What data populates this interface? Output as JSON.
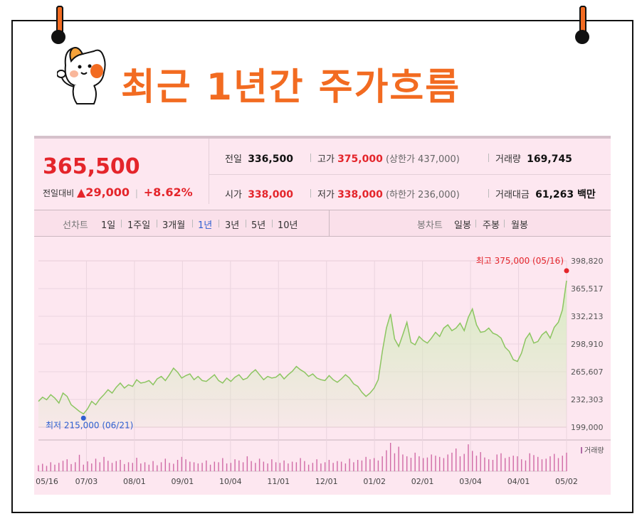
{
  "header": {
    "title": "최근 1년간 주가흐름"
  },
  "quote": {
    "price": "365,500",
    "change_label": "전일대비",
    "change_value": "▲29,000",
    "change_pct": "+8.62%",
    "prev_label": "전일",
    "prev_value": "336,500",
    "high_label": "고가",
    "high_value": "375,000",
    "high_limit": "(상한가 437,000)",
    "volume_label": "거래량",
    "volume_value": "169,745",
    "open_label": "시가",
    "open_value": "338,000",
    "low_label": "저가",
    "low_value": "338,000",
    "low_limit": "(하한가 236,000)",
    "amount_label": "거래대금",
    "amount_value": "61,263 백만"
  },
  "tabs": {
    "chart_label": "선차트",
    "periods": [
      "1일",
      "1주일",
      "3개월",
      "1년",
      "3년",
      "5년",
      "10년"
    ],
    "selected": "1년",
    "candle_label": "봉차트",
    "candle_periods": [
      "일봉",
      "주봉",
      "월봉"
    ]
  },
  "colors": {
    "accent": "#f26b21",
    "up": "#e4252b",
    "line": "#8cc561",
    "fill": "#d6ecc0",
    "low_marker": "#2f5fd1",
    "volume": "#d06aa6"
  },
  "chart_data": {
    "type": "area",
    "x_ticks": [
      "05/16",
      "07/03",
      "08/01",
      "09/01",
      "10/04",
      "11/01",
      "12/01",
      "01/02",
      "02/01",
      "03/04",
      "04/01",
      "05/02"
    ],
    "y_ticks": [
      "398,820",
      "365,517",
      "332,213",
      "298,910",
      "265,607",
      "232,303",
      "199,000"
    ],
    "ylim": [
      199000,
      398820
    ],
    "values": [
      230000,
      235000,
      232000,
      238000,
      234000,
      228000,
      240000,
      236000,
      226000,
      222000,
      218000,
      215000,
      221000,
      230000,
      226000,
      233000,
      238000,
      244000,
      240000,
      247000,
      252000,
      246000,
      250000,
      248000,
      256000,
      252000,
      253000,
      255000,
      250000,
      257000,
      260000,
      255000,
      262000,
      270000,
      265000,
      258000,
      261000,
      263000,
      256000,
      260000,
      255000,
      254000,
      258000,
      262000,
      255000,
      252000,
      258000,
      254000,
      259000,
      262000,
      256000,
      258000,
      264000,
      268000,
      262000,
      256000,
      260000,
      258000,
      259000,
      263000,
      257000,
      262000,
      266000,
      272000,
      268000,
      265000,
      260000,
      263000,
      258000,
      256000,
      255000,
      261000,
      256000,
      253000,
      257000,
      262000,
      258000,
      251000,
      248000,
      241000,
      236000,
      240000,
      246000,
      256000,
      290000,
      318000,
      335000,
      305000,
      296000,
      310000,
      325000,
      301000,
      298000,
      308000,
      303000,
      300000,
      306000,
      313000,
      308000,
      318000,
      322000,
      315000,
      318000,
      324000,
      315000,
      331000,
      341000,
      322000,
      313000,
      314000,
      318000,
      312000,
      310000,
      306000,
      295000,
      290000,
      280000,
      278000,
      288000,
      305000,
      312000,
      300000,
      302000,
      310000,
      314000,
      306000,
      319000,
      325000,
      340000,
      375000
    ],
    "low": {
      "label": "최저 215,000 (06/21)",
      "value": 215000
    },
    "high": {
      "label": "최고 375,000 (05/16)",
      "value": 375000
    },
    "volume_label": "거래량",
    "volume": [
      20,
      25,
      18,
      30,
      22,
      28,
      35,
      40,
      24,
      30,
      55,
      22,
      33,
      26,
      42,
      30,
      48,
      35,
      28,
      34,
      38,
      24,
      30,
      28,
      45,
      26,
      30,
      22,
      34,
      20,
      30,
      42,
      28,
      25,
      38,
      48,
      40,
      32,
      30,
      26,
      28,
      36,
      22,
      32,
      30,
      44,
      26,
      28,
      40,
      36,
      30,
      50,
      34,
      28,
      42,
      32,
      26,
      40,
      30,
      28,
      36,
      26,
      32,
      30,
      44,
      34,
      22,
      28,
      40,
      26,
      30,
      38,
      28,
      34,
      32,
      26,
      42,
      30,
      38,
      36,
      48,
      40,
      44,
      36,
      50,
      70,
      95,
      60,
      82,
      56,
      50,
      45,
      62,
      50,
      44,
      46,
      56,
      52,
      48,
      44,
      56,
      62,
      76,
      50,
      58,
      90,
      68,
      52,
      64,
      46,
      40,
      38,
      56,
      60,
      44,
      48,
      52,
      50,
      40,
      36,
      60,
      54,
      48,
      40,
      42,
      50,
      58,
      44,
      52,
      62
    ]
  }
}
